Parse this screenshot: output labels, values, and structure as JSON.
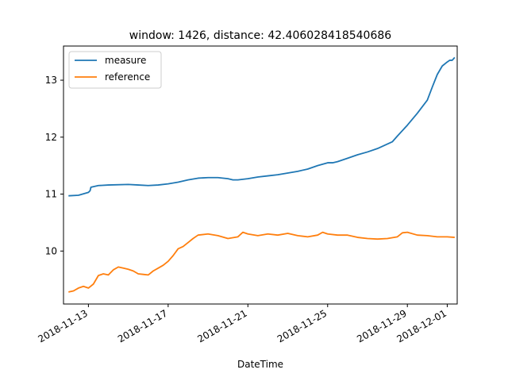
{
  "chart_data": {
    "type": "line",
    "title": "window: 1426, distance: 42.406028418540686",
    "xlabel": "DateTime",
    "ylabel": "",
    "x_ticks": [
      "2018-11-13",
      "2018-11-17",
      "2018-11-21",
      "2018-11-25",
      "2018-11-29",
      "2018-12-01"
    ],
    "y_ticks": [
      "10",
      "11",
      "12",
      "13"
    ],
    "xlim": [
      "2018-11-11T18:00",
      "2018-12-01T12:00"
    ],
    "ylim": [
      9.07,
      13.6
    ],
    "grid": false,
    "legend_position": "top-left",
    "series": [
      {
        "name": "measure",
        "color": "#1f77b4",
        "points": [
          [
            "2018-11-12T00:00",
            10.97
          ],
          [
            "2018-11-12T12:00",
            10.98
          ],
          [
            "2018-11-13T00:00",
            11.03
          ],
          [
            "2018-11-13T02:00",
            11.06
          ],
          [
            "2018-11-13T03:00",
            11.12
          ],
          [
            "2018-11-13T12:00",
            11.15
          ],
          [
            "2018-11-14T00:00",
            11.16
          ],
          [
            "2018-11-15T00:00",
            11.17
          ],
          [
            "2018-11-15T12:00",
            11.16
          ],
          [
            "2018-11-16T00:00",
            11.15
          ],
          [
            "2018-11-16T12:00",
            11.16
          ],
          [
            "2018-11-17T00:00",
            11.18
          ],
          [
            "2018-11-17T12:00",
            11.21
          ],
          [
            "2018-11-18T00:00",
            11.25
          ],
          [
            "2018-11-18T12:00",
            11.28
          ],
          [
            "2018-11-19T00:00",
            11.29
          ],
          [
            "2018-11-19T12:00",
            11.29
          ],
          [
            "2018-11-20T00:00",
            11.27
          ],
          [
            "2018-11-20T06:00",
            11.25
          ],
          [
            "2018-11-20T12:00",
            11.25
          ],
          [
            "2018-11-21T00:00",
            11.27
          ],
          [
            "2018-11-21T12:00",
            11.3
          ],
          [
            "2018-11-22T00:00",
            11.32
          ],
          [
            "2018-11-22T12:00",
            11.34
          ],
          [
            "2018-11-23T00:00",
            11.37
          ],
          [
            "2018-11-23T12:00",
            11.4
          ],
          [
            "2018-11-24T00:00",
            11.44
          ],
          [
            "2018-11-24T12:00",
            11.5
          ],
          [
            "2018-11-25T00:00",
            11.55
          ],
          [
            "2018-11-25T06:00",
            11.55
          ],
          [
            "2018-11-25T12:00",
            11.57
          ],
          [
            "2018-11-26T00:00",
            11.63
          ],
          [
            "2018-11-26T12:00",
            11.69
          ],
          [
            "2018-11-27T00:00",
            11.74
          ],
          [
            "2018-11-27T12:00",
            11.8
          ],
          [
            "2018-11-28T00:00",
            11.88
          ],
          [
            "2018-11-28T06:00",
            11.92
          ],
          [
            "2018-11-28T12:00",
            12.02
          ],
          [
            "2018-11-29T00:00",
            12.21
          ],
          [
            "2018-11-29T12:00",
            12.42
          ],
          [
            "2018-11-30T00:00",
            12.65
          ],
          [
            "2018-11-30T06:00",
            12.88
          ],
          [
            "2018-11-30T12:00",
            13.1
          ],
          [
            "2018-11-30T18:00",
            13.25
          ],
          [
            "2018-12-01T00:00",
            13.32
          ],
          [
            "2018-12-01T03:00",
            13.35
          ],
          [
            "2018-12-01T06:00",
            13.35
          ],
          [
            "2018-12-01T09:00",
            13.4
          ]
        ]
      },
      {
        "name": "reference",
        "color": "#ff7f0e",
        "points": [
          [
            "2018-11-12T00:00",
            9.28
          ],
          [
            "2018-11-12T06:00",
            9.3
          ],
          [
            "2018-11-12T12:00",
            9.35
          ],
          [
            "2018-11-12T18:00",
            9.38
          ],
          [
            "2018-11-13T00:00",
            9.35
          ],
          [
            "2018-11-13T06:00",
            9.42
          ],
          [
            "2018-11-13T12:00",
            9.57
          ],
          [
            "2018-11-13T18:00",
            9.6
          ],
          [
            "2018-11-14T00:00",
            9.58
          ],
          [
            "2018-11-14T06:00",
            9.67
          ],
          [
            "2018-11-14T12:00",
            9.72
          ],
          [
            "2018-11-14T18:00",
            9.7
          ],
          [
            "2018-11-15T00:00",
            9.68
          ],
          [
            "2018-11-15T06:00",
            9.65
          ],
          [
            "2018-11-15T12:00",
            9.6
          ],
          [
            "2018-11-15T18:00",
            9.59
          ],
          [
            "2018-11-16T00:00",
            9.58
          ],
          [
            "2018-11-16T06:00",
            9.65
          ],
          [
            "2018-11-16T12:00",
            9.7
          ],
          [
            "2018-11-16T18:00",
            9.75
          ],
          [
            "2018-11-17T00:00",
            9.82
          ],
          [
            "2018-11-17T06:00",
            9.92
          ],
          [
            "2018-11-17T12:00",
            10.04
          ],
          [
            "2018-11-17T18:00",
            10.08
          ],
          [
            "2018-11-18T00:00",
            10.15
          ],
          [
            "2018-11-18T06:00",
            10.22
          ],
          [
            "2018-11-18T12:00",
            10.28
          ],
          [
            "2018-11-19T00:00",
            10.3
          ],
          [
            "2018-11-19T12:00",
            10.27
          ],
          [
            "2018-11-20T00:00",
            10.22
          ],
          [
            "2018-11-20T12:00",
            10.25
          ],
          [
            "2018-11-20T18:00",
            10.33
          ],
          [
            "2018-11-21T00:00",
            10.3
          ],
          [
            "2018-11-21T12:00",
            10.27
          ],
          [
            "2018-11-22T00:00",
            10.3
          ],
          [
            "2018-11-22T12:00",
            10.28
          ],
          [
            "2018-11-23T00:00",
            10.31
          ],
          [
            "2018-11-23T12:00",
            10.27
          ],
          [
            "2018-11-24T00:00",
            10.25
          ],
          [
            "2018-11-24T12:00",
            10.28
          ],
          [
            "2018-11-24T18:00",
            10.33
          ],
          [
            "2018-11-25T00:00",
            10.3
          ],
          [
            "2018-11-25T12:00",
            10.28
          ],
          [
            "2018-11-26T00:00",
            10.28
          ],
          [
            "2018-11-26T12:00",
            10.24
          ],
          [
            "2018-11-27T00:00",
            10.22
          ],
          [
            "2018-11-27T12:00",
            10.21
          ],
          [
            "2018-11-28T00:00",
            10.22
          ],
          [
            "2018-11-28T12:00",
            10.25
          ],
          [
            "2018-11-28T18:00",
            10.32
          ],
          [
            "2018-11-29T00:00",
            10.33
          ],
          [
            "2018-11-29T12:00",
            10.28
          ],
          [
            "2018-11-30T00:00",
            10.27
          ],
          [
            "2018-11-30T12:00",
            10.25
          ],
          [
            "2018-12-01T00:00",
            10.25
          ],
          [
            "2018-12-01T09:00",
            10.24
          ]
        ]
      }
    ]
  }
}
